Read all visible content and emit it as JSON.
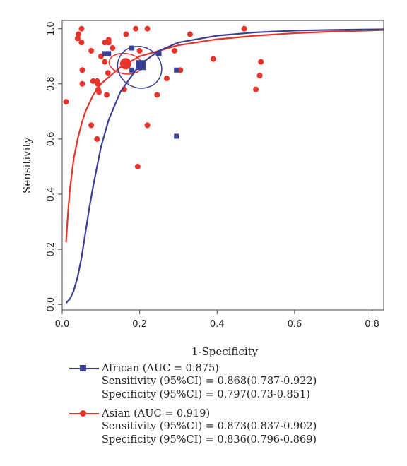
{
  "chart_data": {
    "type": "scatter",
    "xlabel": "1-Specificity",
    "ylabel": "Sensitivity",
    "xlim": [
      0.0,
      0.83
    ],
    "ylim": [
      -0.02,
      1.03
    ],
    "xticks": [
      "0.0",
      "0.2",
      "0.4",
      "0.6",
      "0.8"
    ],
    "yticks": [
      "0.0",
      "0.2",
      "0.4",
      "0.6",
      "0.8",
      "1.0"
    ],
    "grid": false,
    "legend_position": "bottom",
    "series": [
      {
        "name": "African",
        "color": "#3a3f96",
        "marker": "square",
        "auc_label": "African (AUC = 0.875)",
        "sensitivity_label": "Sensitivity (95%CI) = 0.868(0.787-0.922)",
        "specificity_label": "Specificity (95%CI) = 0.797(0.73-0.851)",
        "points": [
          [
            0.11,
            0.91
          ],
          [
            0.12,
            0.91
          ],
          [
            0.18,
            0.93
          ],
          [
            0.18,
            0.85
          ],
          [
            0.2,
            0.87
          ],
          [
            0.25,
            0.91
          ],
          [
            0.295,
            0.85
          ],
          [
            0.295,
            0.61
          ]
        ],
        "summary_point": [
          0.203,
          0.868
        ],
        "confidence_region": {
          "cx": 0.2,
          "cy": 0.86,
          "rx": 0.058,
          "ry": 0.074,
          "rotation_deg": 28
        },
        "sroc_curve": [
          [
            0.01,
            0.005
          ],
          [
            0.02,
            0.02
          ],
          [
            0.03,
            0.05
          ],
          [
            0.04,
            0.1
          ],
          [
            0.05,
            0.17
          ],
          [
            0.06,
            0.26
          ],
          [
            0.07,
            0.35
          ],
          [
            0.08,
            0.43
          ],
          [
            0.1,
            0.57
          ],
          [
            0.12,
            0.67
          ],
          [
            0.15,
            0.77
          ],
          [
            0.2,
            0.87
          ],
          [
            0.25,
            0.92
          ],
          [
            0.3,
            0.95
          ],
          [
            0.4,
            0.975
          ],
          [
            0.5,
            0.987
          ],
          [
            0.6,
            0.993
          ],
          [
            0.7,
            0.996
          ],
          [
            0.83,
            0.998
          ]
        ]
      },
      {
        "name": "Asian",
        "color": "#e8332a",
        "marker": "circle",
        "auc_label": "Asian (AUC = 0.919)",
        "sensitivity_label": "Sensitivity (95%CI) = 0.873(0.837-0.902)",
        "specificity_label": "Specificity (95%CI) = 0.836(0.796-0.869)",
        "points": [
          [
            0.01,
            0.735
          ],
          [
            0.04,
            0.965
          ],
          [
            0.042,
            0.98
          ],
          [
            0.05,
            1.0
          ],
          [
            0.05,
            0.95
          ],
          [
            0.052,
            0.85
          ],
          [
            0.052,
            0.8
          ],
          [
            0.075,
            0.92
          ],
          [
            0.075,
            0.65
          ],
          [
            0.08,
            0.81
          ],
          [
            0.09,
            0.6
          ],
          [
            0.09,
            0.81
          ],
          [
            0.092,
            0.8
          ],
          [
            0.093,
            0.78
          ],
          [
            0.095,
            0.77
          ],
          [
            0.1,
            0.9
          ],
          [
            0.11,
            0.95
          ],
          [
            0.11,
            0.88
          ],
          [
            0.115,
            0.76
          ],
          [
            0.118,
            0.84
          ],
          [
            0.12,
            0.95
          ],
          [
            0.12,
            0.96
          ],
          [
            0.13,
            0.93
          ],
          [
            0.16,
            0.78
          ],
          [
            0.165,
            0.98
          ],
          [
            0.19,
            1.0
          ],
          [
            0.195,
            0.5
          ],
          [
            0.2,
            0.92
          ],
          [
            0.22,
            1.0
          ],
          [
            0.22,
            0.65
          ],
          [
            0.245,
            0.76
          ],
          [
            0.27,
            0.82
          ],
          [
            0.29,
            0.92
          ],
          [
            0.305,
            0.85
          ],
          [
            0.33,
            0.98
          ],
          [
            0.39,
            0.89
          ],
          [
            0.47,
            1.0
          ],
          [
            0.5,
            0.78
          ],
          [
            0.51,
            0.83
          ],
          [
            0.513,
            0.88
          ]
        ],
        "summary_point": [
          0.164,
          0.873
        ],
        "confidence_region": {
          "cx": 0.164,
          "cy": 0.873,
          "rx": 0.043,
          "ry": 0.037,
          "rotation_deg": 8
        },
        "sroc_curve": [
          [
            0.01,
            0.225
          ],
          [
            0.015,
            0.33
          ],
          [
            0.02,
            0.42
          ],
          [
            0.03,
            0.53
          ],
          [
            0.04,
            0.6
          ],
          [
            0.05,
            0.655
          ],
          [
            0.06,
            0.7
          ],
          [
            0.08,
            0.76
          ],
          [
            0.1,
            0.8
          ],
          [
            0.15,
            0.86
          ],
          [
            0.2,
            0.9
          ],
          [
            0.3,
            0.94
          ],
          [
            0.4,
            0.962
          ],
          [
            0.5,
            0.975
          ],
          [
            0.6,
            0.984
          ],
          [
            0.7,
            0.99
          ],
          [
            0.83,
            0.995
          ]
        ]
      }
    ]
  }
}
